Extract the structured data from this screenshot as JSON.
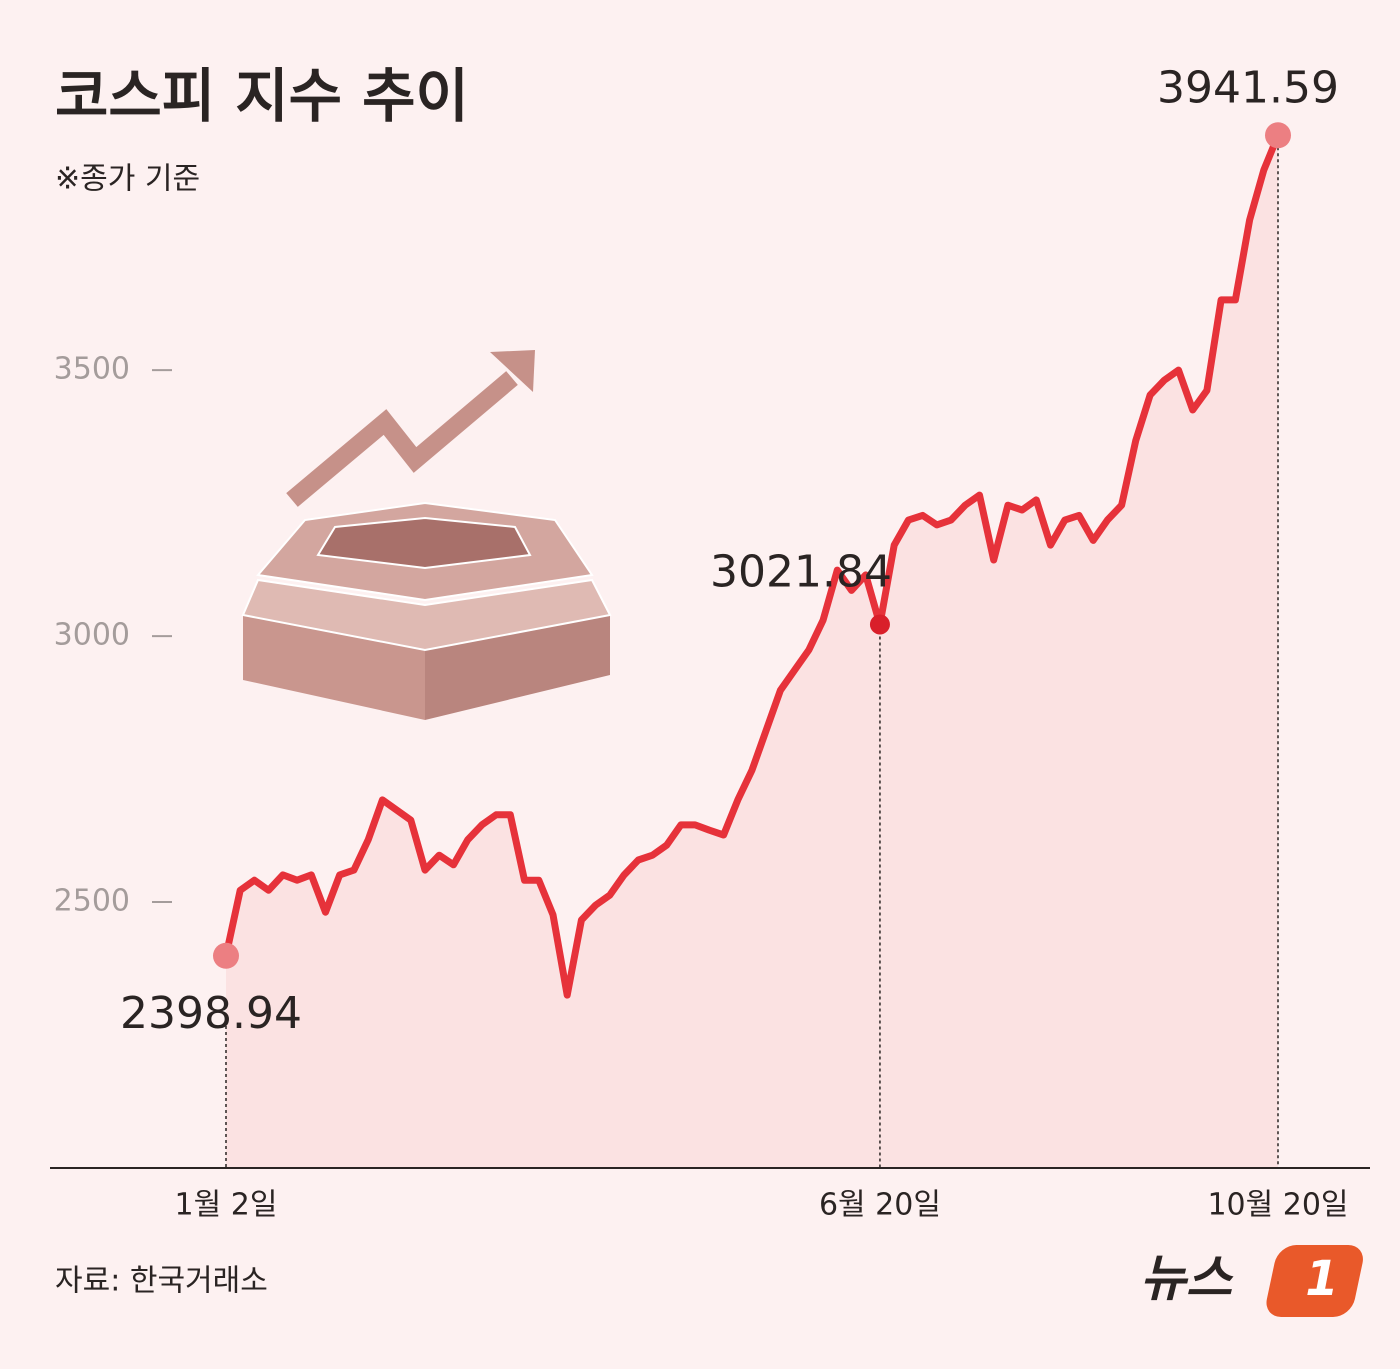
{
  "chart_data": {
    "type": "line",
    "title": "코스피 지수 추이",
    "subtitle": "※종가 기준",
    "source": "자료: 한국거래소",
    "categories": [
      "1월 2일",
      null,
      null,
      null,
      null,
      null,
      null,
      null,
      null,
      null,
      null,
      null,
      null,
      null,
      null,
      null,
      null,
      null,
      null,
      null,
      null,
      null,
      null,
      null,
      null,
      null,
      null,
      null,
      null,
      null,
      null,
      null,
      null,
      null,
      null,
      null,
      null,
      null,
      null,
      null,
      null,
      null,
      null,
      null,
      null,
      null,
      "6월 20일",
      null,
      null,
      null,
      null,
      null,
      null,
      null,
      null,
      null,
      null,
      null,
      null,
      null,
      null,
      null,
      null,
      null,
      null,
      null,
      null,
      null,
      null,
      null,
      null,
      null,
      null,
      null,
      "10월 20일"
    ],
    "values": [
      2398.94,
      2522,
      2541,
      2522,
      2551,
      2541,
      2551,
      2481,
      2551,
      2560,
      2617,
      2692,
      2673,
      2654,
      2560,
      2588,
      2570,
      2617,
      2645,
      2664,
      2664,
      2541,
      2541,
      2476,
      2325,
      2466,
      2494,
      2513,
      2551,
      2579,
      2588,
      2607,
      2645,
      2645,
      2635,
      2626,
      2692,
      2748,
      2823,
      2898,
      2936,
      2974,
      3030,
      3124,
      3086,
      3115,
      3021.84,
      3171,
      3218,
      3227,
      3209,
      3218,
      3246,
      3265,
      3143,
      3246,
      3237,
      3256,
      3171,
      3218,
      3227,
      3180,
      3218,
      3246,
      3368,
      3453,
      3481,
      3500,
      3425,
      3462,
      3632,
      3632,
      3782,
      3876,
      3941.59
    ],
    "value_labels": [
      "2398.94",
      null,
      null,
      null,
      null,
      null,
      null,
      null,
      null,
      null,
      null,
      null,
      null,
      null,
      null,
      null,
      null,
      null,
      null,
      null,
      null,
      null,
      null,
      null,
      null,
      null,
      null,
      null,
      null,
      null,
      null,
      null,
      null,
      null,
      null,
      null,
      null,
      null,
      null,
      null,
      null,
      null,
      null,
      null,
      null,
      null,
      "3021.84",
      null,
      null,
      null,
      null,
      null,
      null,
      null,
      null,
      null,
      null,
      null,
      null,
      null,
      null,
      null,
      null,
      null,
      null,
      null,
      null,
      null,
      null,
      null,
      null,
      null,
      null,
      null,
      "3941.59"
    ],
    "color": "#e6323a",
    "area_color": "#fbe2e2",
    "ylim": [
      2000,
      4100
    ],
    "yticks": [
      2500,
      3000,
      3500
    ]
  },
  "logo": {
    "text": "뉴스",
    "mark": "1"
  }
}
